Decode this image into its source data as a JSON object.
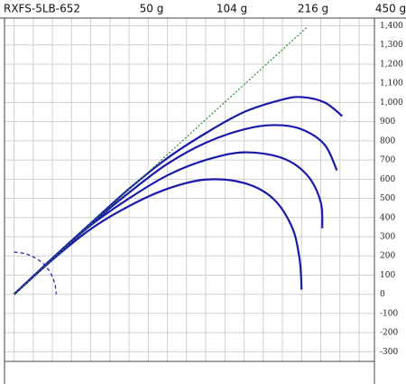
{
  "chart_data": {
    "type": "line",
    "title": "RXFS-5LB-652",
    "xlim": [
      -50,
      1880
    ],
    "xticks": [
      0,
      100,
      200,
      300,
      400,
      500,
      600,
      700,
      800,
      900,
      1000,
      1100,
      1200,
      1300,
      1400,
      1500,
      1600,
      1700,
      1800
    ],
    "ylim": [
      -350,
      1440
    ],
    "yticks": [
      {
        "value": 1400,
        "label": "1,400"
      },
      {
        "value": 1300,
        "label": "1,300"
      },
      {
        "value": 1200,
        "label": "1,200"
      },
      {
        "value": 1100,
        "label": "1,100"
      },
      {
        "value": 1000,
        "label": "1,000"
      },
      900,
      800,
      700,
      600,
      500,
      400,
      300,
      200,
      100,
      0,
      -100,
      -200,
      -300
    ],
    "grid": true,
    "series": [
      {
        "name": "50 g",
        "color": "#1a1aa8",
        "x": [
          0,
          200,
          400,
          600,
          800,
          1000,
          1200,
          1350,
          1450,
          1490,
          1500
        ],
        "values": [
          0,
          180,
          340,
          460,
          550,
          598,
          580,
          500,
          350,
          180,
          24
        ]
      },
      {
        "name": "104 g",
        "color": "#1a1aa8",
        "x": [
          0,
          200,
          400,
          600,
          800,
          1000,
          1200,
          1400,
          1530,
          1600,
          1608
        ],
        "values": [
          0,
          185,
          360,
          500,
          620,
          700,
          740,
          710,
          620,
          480,
          344
        ]
      },
      {
        "name": "216 g",
        "color": "#1a1aa8",
        "x": [
          0,
          200,
          400,
          600,
          800,
          1000,
          1200,
          1360,
          1500,
          1620,
          1684
        ],
        "values": [
          0,
          185,
          365,
          530,
          680,
          790,
          860,
          882,
          860,
          780,
          646
        ]
      },
      {
        "name": "450 g",
        "color": "#1a1aa8",
        "x": [
          0,
          200,
          400,
          600,
          800,
          1000,
          1200,
          1400,
          1500,
          1620,
          1712
        ],
        "values": [
          0,
          188,
          370,
          550,
          710,
          840,
          950,
          1015,
          1028,
          1000,
          929
        ]
      },
      {
        "color": "#2a8a2a",
        "style": "dotted",
        "x": [
          0,
          1528
        ],
        "values": [
          0,
          1392
        ]
      },
      {
        "color": "#1a1aa8",
        "style": "dashed",
        "x": [
          0,
          57,
          110,
          156,
          190,
          212,
          220
        ],
        "values": [
          220,
          212,
          190,
          156,
          110,
          57,
          0
        ]
      }
    ]
  }
}
